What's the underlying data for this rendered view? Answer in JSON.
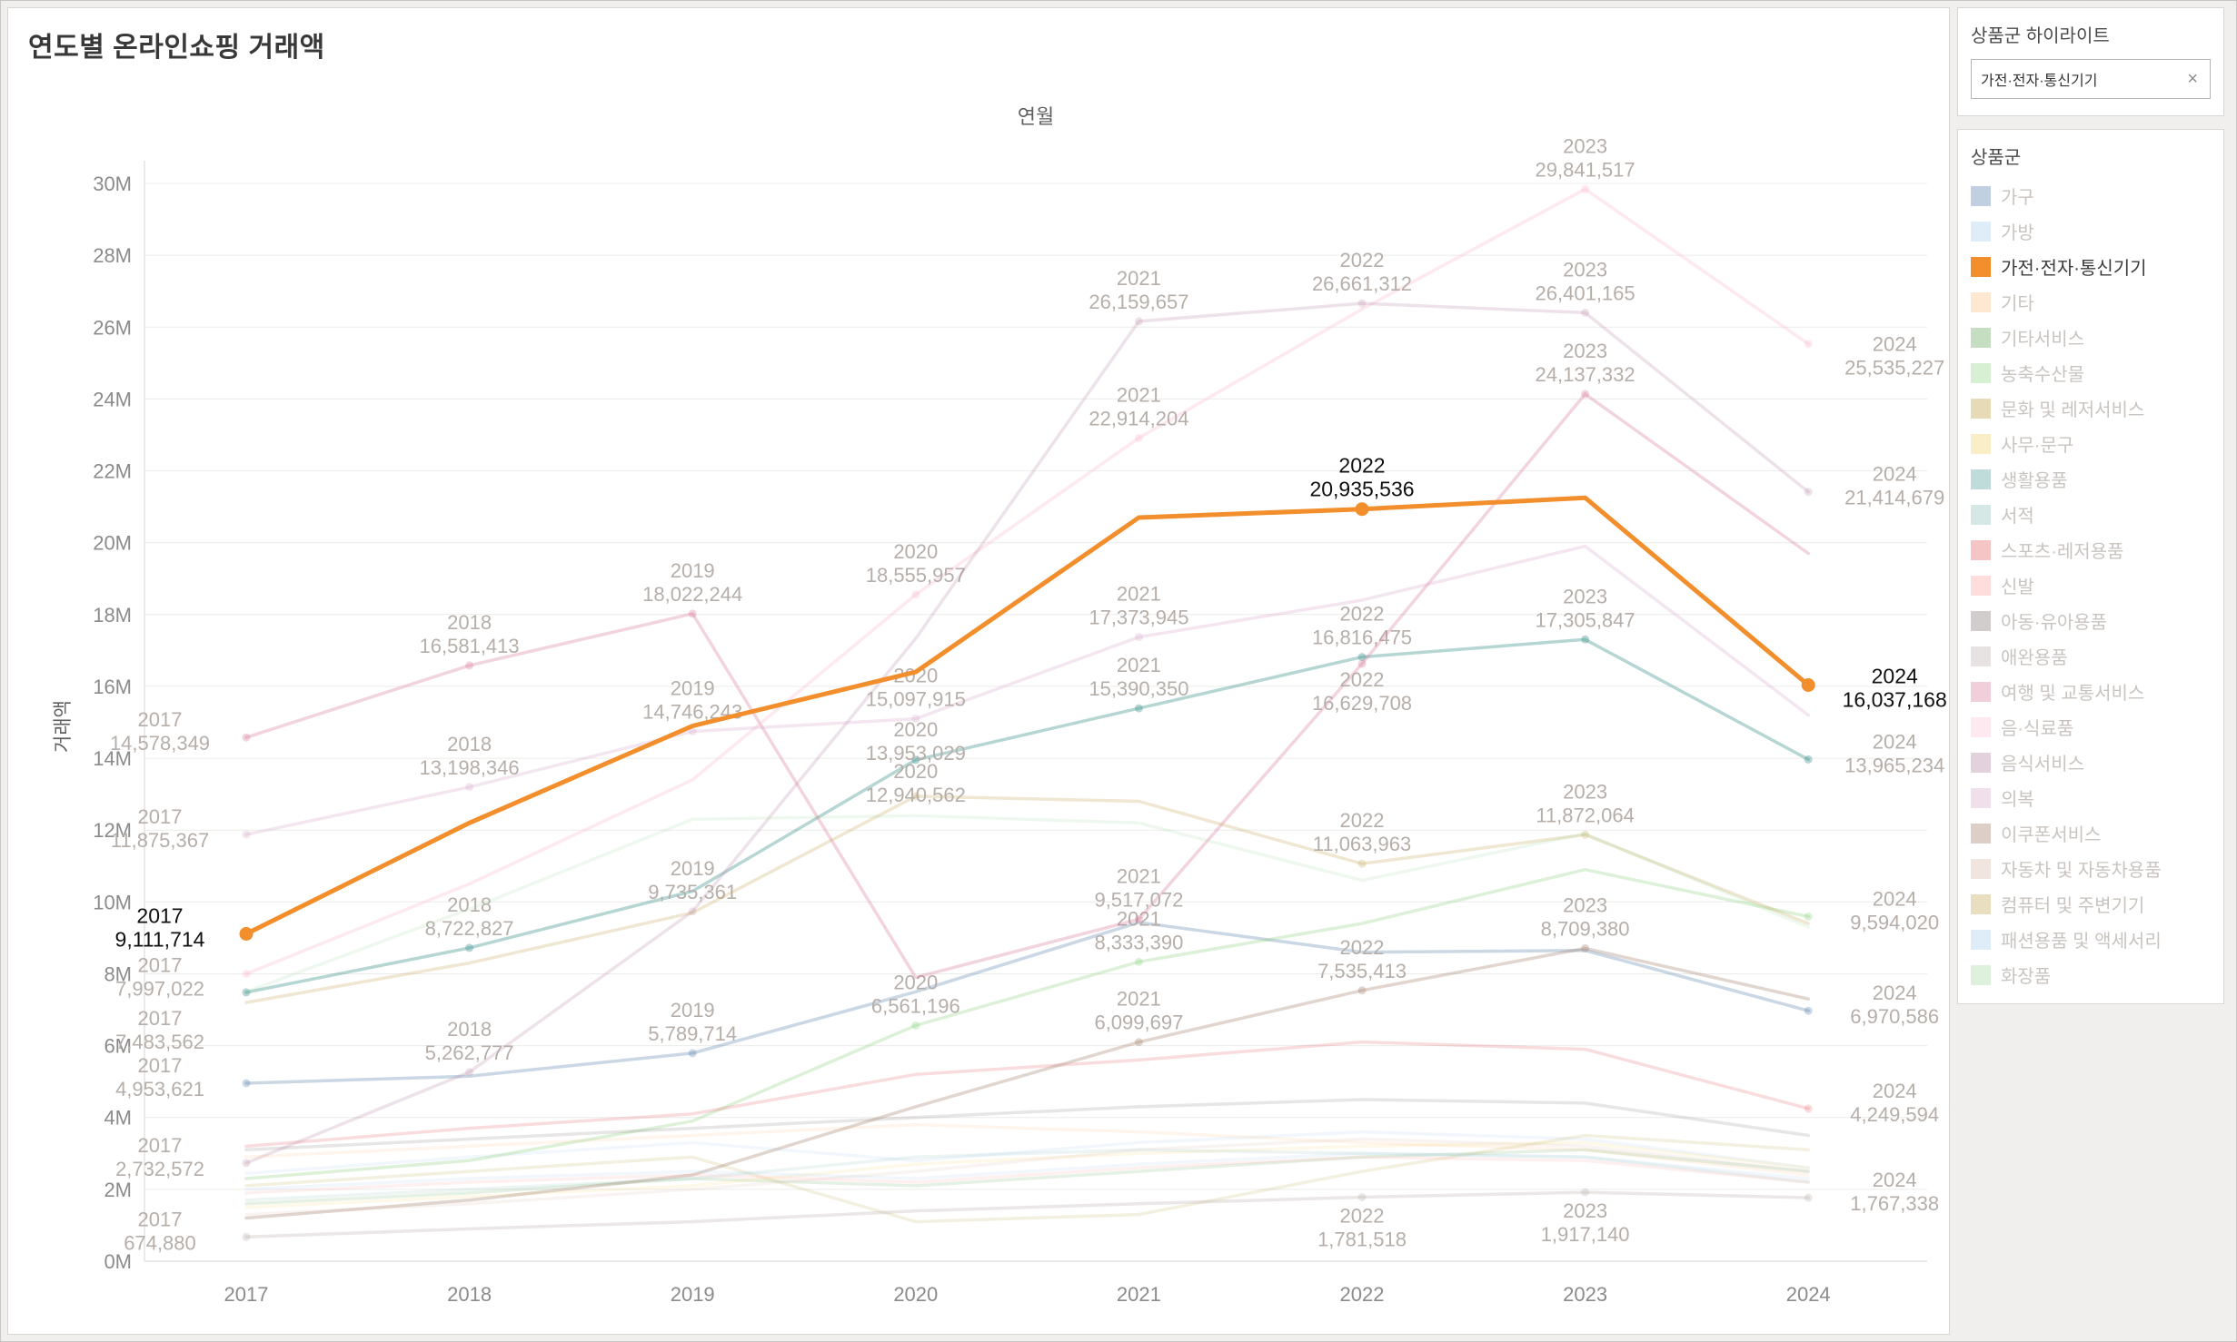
{
  "page": {
    "title": "연도별 온라인쇼핑 거래액"
  },
  "sidebar": {
    "highlight_card": {
      "title": "상품군 하이라이트",
      "value": "가전·전자·통신기기",
      "clear_icon": "×"
    },
    "legend_card": {
      "title": "상품군"
    }
  },
  "chart_data": {
    "type": "line",
    "title": "연도별 온라인쇼핑 거래액",
    "xlabel": "연월",
    "ylabel": "거래액",
    "x": [
      2017,
      2018,
      2019,
      2020,
      2021,
      2022,
      2023,
      2024
    ],
    "ylim": [
      0,
      30000000
    ],
    "ytick_step": 2000000,
    "yticks": [
      "0M",
      "2M",
      "4M",
      "6M",
      "8M",
      "10M",
      "12M",
      "14M",
      "16M",
      "18M",
      "20M",
      "22M",
      "24M",
      "26M",
      "28M",
      "30M"
    ],
    "grid": "horizontal",
    "legend_position": "right",
    "highlight": "가전·전자·통신기기",
    "highlight_color": "#f28e2b",
    "series": [
      {
        "name": "가구",
        "color": "#4e79a7",
        "opacity": 0.3,
        "values": [
          4953621,
          5150000,
          5789714,
          7500000,
          9430000,
          8600000,
          8650000,
          6970586
        ],
        "labels": [
          {
            "year": 2017,
            "value": "4,953,621",
            "pos": "left"
          },
          {
            "year": 2019,
            "value": "5,789,714"
          },
          {
            "year": 2024,
            "value": "6,970,586",
            "pos": "right"
          }
        ]
      },
      {
        "name": "가방",
        "color": "#a0cbe8",
        "opacity": 0.15,
        "values": [
          2442000,
          2900000,
          3300000,
          2800000,
          3300000,
          3600000,
          3400000,
          2600000
        ],
        "labels": []
      },
      {
        "name": "가전·전자·통신기기",
        "color": "#f28e2b",
        "opacity": 1,
        "values": [
          9111714,
          12200000,
          14900000,
          16400000,
          20700000,
          20935536,
          21250000,
          16037168
        ],
        "labels": [
          {
            "year": 2017,
            "value": "9,111,714",
            "pos": "left"
          },
          {
            "year": 2022,
            "value": "20,935,536"
          },
          {
            "year": 2024,
            "value": "16,037,168",
            "pos": "right",
            "dy": 10
          }
        ]
      },
      {
        "name": "기타",
        "color": "#ffbe7d",
        "opacity": 0.15,
        "values": [
          2900000,
          3200000,
          3500000,
          3800000,
          3600000,
          3300000,
          3100000,
          2400000
        ],
        "labels": []
      },
      {
        "name": "기타서비스",
        "color": "#59a14f",
        "opacity": 0.15,
        "values": [
          1600000,
          1900000,
          2300000,
          2100000,
          2500000,
          2900000,
          3100000,
          2500000
        ],
        "labels": []
      },
      {
        "name": "농축수산물",
        "color": "#8cd17d",
        "opacity": 0.3,
        "values": [
          2300000,
          2800000,
          3900000,
          6561196,
          8333390,
          9400000,
          10900000,
          9594020
        ],
        "labels": [
          {
            "year": 2020,
            "value": "6,561,196"
          },
          {
            "year": 2021,
            "value": "8,333,390"
          },
          {
            "year": 2024,
            "value": "9,594,020",
            "pos": "right"
          }
        ]
      },
      {
        "name": "문화 및 레저서비스",
        "color": "#b6992d",
        "opacity": 0.15,
        "values": [
          2100000,
          2500000,
          2900000,
          1100000,
          1300000,
          2500000,
          3500000,
          3100000
        ],
        "labels": []
      },
      {
        "name": "사무·문구",
        "color": "#f1ce63",
        "opacity": 0.15,
        "values": [
          1500000,
          1800000,
          2100000,
          2700000,
          3000000,
          3200000,
          3300000,
          2600000
        ],
        "labels": []
      },
      {
        "name": "생활용품",
        "color": "#499894",
        "opacity": 0.4,
        "values": [
          7483562,
          8722827,
          10300000,
          13953029,
          15390350,
          16816475,
          17305847,
          13965234
        ],
        "labels": [
          {
            "year": 2017,
            "value": "7,483,562",
            "pos": "left",
            "dy": 48
          },
          {
            "year": 2018,
            "value": "8,722,827"
          },
          {
            "year": 2020,
            "value": "13,953,029",
            "dy": 14
          },
          {
            "year": 2021,
            "value": "15,390,350"
          },
          {
            "year": 2022,
            "value": "16,816,475"
          },
          {
            "year": 2023,
            "value": "17,305,847"
          },
          {
            "year": 2024,
            "value": "13,965,234",
            "pos": "right"
          }
        ]
      },
      {
        "name": "서적",
        "color": "#86bcb6",
        "opacity": 0.15,
        "values": [
          1700000,
          2000000,
          2300000,
          2900000,
          3100000,
          3000000,
          2900000,
          2200000
        ],
        "labels": []
      },
      {
        "name": "스포츠·레저용품",
        "color": "#e15759",
        "opacity": 0.2,
        "values": [
          3200000,
          3700000,
          4100000,
          5200000,
          5600000,
          6100000,
          5900000,
          4249594
        ],
        "labels": [
          {
            "year": 2024,
            "value": "4,249,594",
            "pos": "right"
          }
        ]
      },
      {
        "name": "신발",
        "color": "#ff9d9a",
        "opacity": 0.15,
        "values": [
          1900000,
          2200000,
          2400000,
          2200000,
          2600000,
          2900000,
          2800000,
          2200000
        ],
        "labels": []
      },
      {
        "name": "아동·유아용품",
        "color": "#79706e",
        "opacity": 0.18,
        "values": [
          3100000,
          3400000,
          3700000,
          4000000,
          4300000,
          4500000,
          4400000,
          3500000
        ],
        "labels": []
      },
      {
        "name": "애완용품",
        "color": "#bab0ac",
        "opacity": 0.3,
        "values": [
          674880,
          900000,
          1100000,
          1400000,
          1600000,
          1781518,
          1917140,
          1767338
        ],
        "labels": [
          {
            "year": 2017,
            "value": "674,880",
            "pos": "left"
          },
          {
            "year": 2022,
            "value": "1,781,518",
            "pos": "below"
          },
          {
            "year": 2023,
            "value": "1,917,140",
            "pos": "below"
          },
          {
            "year": 2024,
            "value": "1,767,338",
            "pos": "right"
          }
        ]
      },
      {
        "name": "여행 및 교통서비스",
        "color": "#d37295",
        "opacity": 0.3,
        "values": [
          14578349,
          16581413,
          18022244,
          7900000,
          9517072,
          16629708,
          24137332,
          19700000
        ],
        "labels": [
          {
            "year": 2017,
            "value": "14,578,349",
            "pos": "left"
          },
          {
            "year": 2018,
            "value": "16,581,413"
          },
          {
            "year": 2019,
            "value": "18,022,244"
          },
          {
            "year": 2021,
            "value": "9,517,072"
          },
          {
            "year": 2022,
            "value": "16,629,708",
            "dy": 65
          },
          {
            "year": 2023,
            "value": "24,137,332"
          }
        ]
      },
      {
        "name": "음·식료품",
        "color": "#fabfd2",
        "opacity": 0.35,
        "values": [
          7997022,
          10500000,
          13400000,
          18555957,
          22914204,
          26500000,
          29841517,
          25535227
        ],
        "labels": [
          {
            "year": 2017,
            "value": "7,997,022",
            "pos": "left",
            "dy": 10
          },
          {
            "year": 2020,
            "value": "18,555,957"
          },
          {
            "year": 2021,
            "value": "22,914,204"
          },
          {
            "year": 2023,
            "value": "29,841,517"
          },
          {
            "year": 2024,
            "value": "25,535,227",
            "pos": "right",
            "dy": 20
          }
        ]
      },
      {
        "name": "음식서비스",
        "color": "#b07aa1",
        "opacity": 0.22,
        "values": [
          2732572,
          5262777,
          9735361,
          17334000,
          26159657,
          26661312,
          26401165,
          21414679
        ],
        "labels": [
          {
            "year": 2017,
            "value": "2,732,572",
            "pos": "left"
          },
          {
            "year": 2018,
            "value": "5,262,777"
          },
          {
            "year": 2019,
            "value": "9,735,361"
          },
          {
            "year": 2021,
            "value": "26,159,657"
          },
          {
            "year": 2022,
            "value": "26,661,312"
          },
          {
            "year": 2023,
            "value": "26,401,165"
          },
          {
            "year": 2024,
            "value": "21,414,679",
            "pos": "right"
          }
        ]
      },
      {
        "name": "의복",
        "color": "#d4a6c8",
        "opacity": 0.28,
        "values": [
          11875367,
          13198346,
          14746243,
          15097915,
          17373945,
          18400000,
          19900000,
          15200000
        ],
        "labels": [
          {
            "year": 2017,
            "value": "11,875,367",
            "pos": "left"
          },
          {
            "year": 2018,
            "value": "13,198,346"
          },
          {
            "year": 2019,
            "value": "14,746,243"
          },
          {
            "year": 2020,
            "value": "15,097,915"
          },
          {
            "year": 2021,
            "value": "17,373,945"
          }
        ]
      },
      {
        "name": "이쿠폰서비스",
        "color": "#9d7660",
        "opacity": 0.3,
        "values": [
          1200000,
          1700000,
          2400000,
          4300000,
          6099697,
          7535413,
          8709380,
          7300000
        ],
        "labels": [
          {
            "year": 2021,
            "value": "6,099,697"
          },
          {
            "year": 2022,
            "value": "7,535,413"
          },
          {
            "year": 2023,
            "value": "8,709,380"
          }
        ]
      },
      {
        "name": "자동차 및 자동차용품",
        "color": "#d7b5a6",
        "opacity": 0.15,
        "values": [
          1300000,
          1600000,
          2000000,
          2500000,
          3100000,
          3400000,
          3200000,
          2500000
        ],
        "labels": []
      },
      {
        "name": "컴퓨터 및 주변기기",
        "color": "#bfa14a",
        "opacity": 0.25,
        "values": [
          7200000,
          8300000,
          9700000,
          12940562,
          12800000,
          11063963,
          11872064,
          9400000
        ],
        "labels": [
          {
            "year": 2020,
            "value": "12,940,562",
            "dy": 20
          },
          {
            "year": 2022,
            "value": "11,063,963"
          },
          {
            "year": 2023,
            "value": "11,872,064"
          }
        ]
      },
      {
        "name": "패션용품 및 액세서리",
        "color": "#a0cbe8",
        "opacity": 0.15,
        "values": [
          2000000,
          2300000,
          2500000,
          2300000,
          2700000,
          3000000,
          2900000,
          2300000
        ],
        "labels": []
      },
      {
        "name": "화장품",
        "color": "#9fd89f",
        "opacity": 0.18,
        "values": [
          7500000,
          9800000,
          12300000,
          12400000,
          12200000,
          10600000,
          11900000,
          9300000
        ],
        "labels": []
      }
    ]
  }
}
